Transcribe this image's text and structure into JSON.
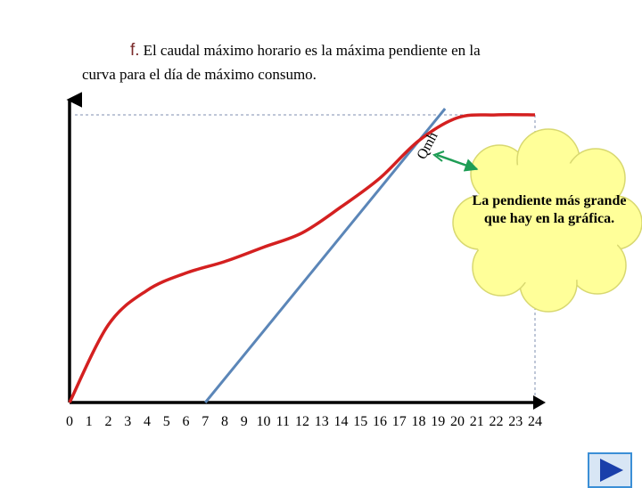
{
  "title": {
    "prefix": "f.",
    "line1": "El caudal máximo horario es la máxima pendiente en la",
    "line2": "curva para  el día de máximo consumo."
  },
  "callout": {
    "text": "La pendiente más grande que hay en la gráfica."
  },
  "chart_data": {
    "type": "line",
    "x_ticks": [
      "0",
      "1",
      "2",
      "3",
      "4",
      "5",
      "6",
      "7",
      "8",
      "9",
      "10",
      "11",
      "12",
      "13",
      "14",
      "15",
      "16",
      "17",
      "18",
      "19",
      "20",
      "21",
      "22",
      "23",
      "24"
    ],
    "xlim": [
      0,
      24
    ],
    "series": [
      {
        "kind": "curve",
        "color": "#d42020",
        "x": [
          0,
          2,
          4,
          6,
          8,
          10,
          12,
          14,
          16,
          18,
          20,
          22,
          24
        ],
        "y": [
          0,
          0.27,
          0.39,
          0.45,
          0.49,
          0.54,
          0.59,
          0.68,
          0.78,
          0.91,
          0.99,
          1.0,
          1.0
        ]
      },
      {
        "kind": "tangent",
        "label": "Qmh",
        "color": "#5b86b8",
        "x": [
          7.0,
          19.1
        ],
        "y": [
          0,
          1.0
        ]
      }
    ],
    "arrow_color": "#1e9d55",
    "callout_fill": "#ffff99"
  },
  "nav": {
    "next_icon": "play-triangle-icon",
    "fill": "#1a3faa",
    "frame": "#3b8fd6"
  }
}
